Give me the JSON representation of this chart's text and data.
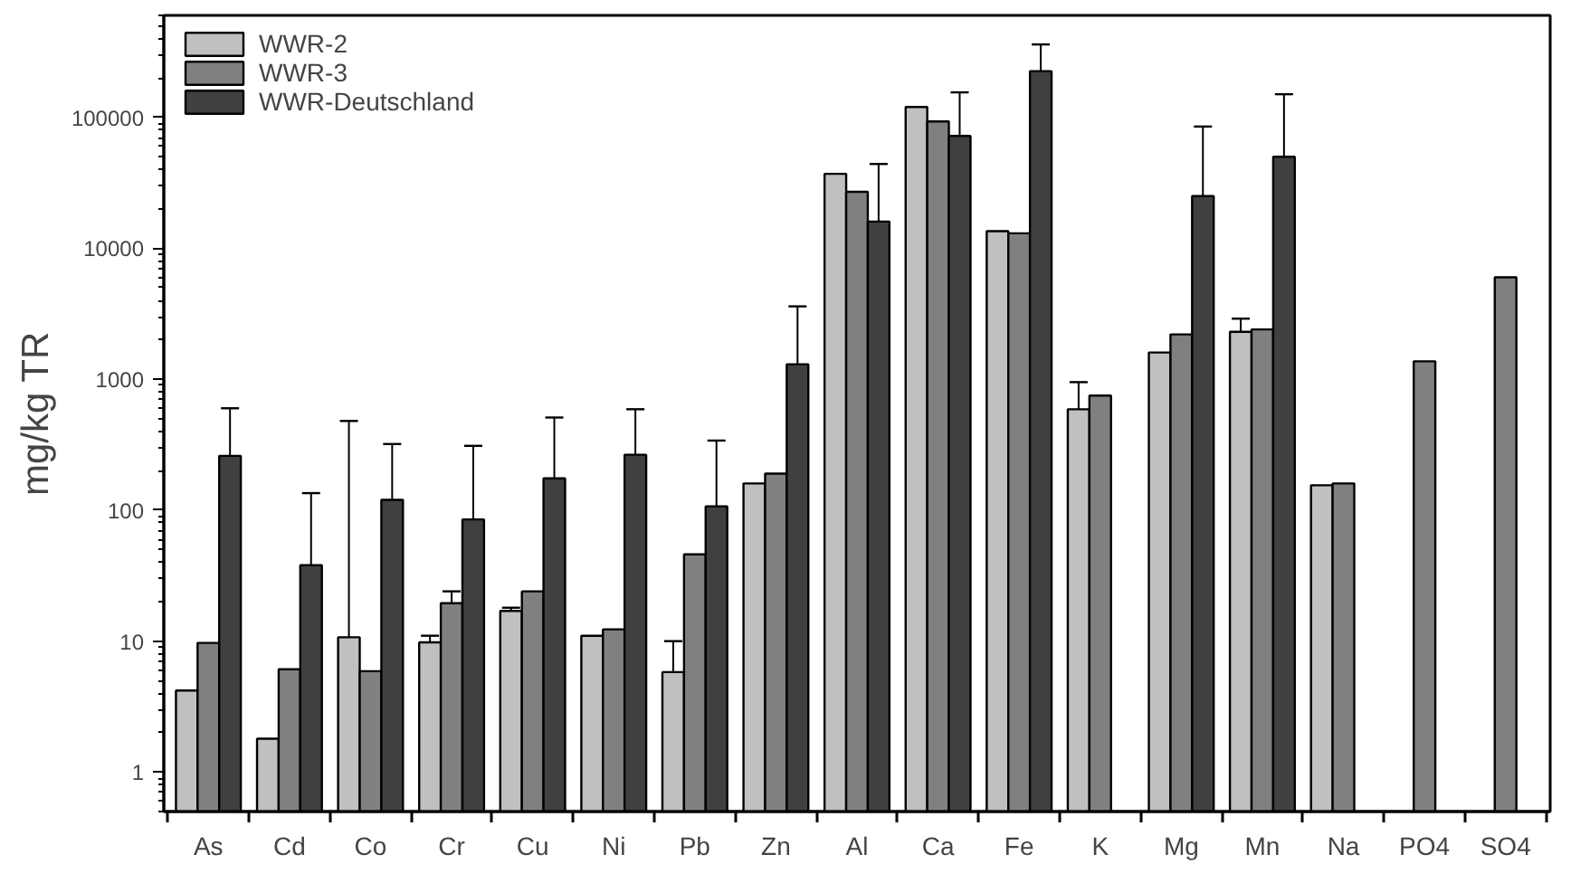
{
  "chart_data": {
    "type": "bar",
    "ylabel": "mg/kg TR",
    "log": "y",
    "ylim": [
      0.5,
      600000
    ],
    "yticks": [
      1,
      10,
      100,
      1000,
      10000,
      100000
    ],
    "grid": false,
    "legend": "top left",
    "categories": [
      "As",
      "Cd",
      "Co",
      "Cr",
      "Cu",
      "Ni",
      "Pb",
      "Zn",
      "Al",
      "Ca",
      "Fe",
      "K",
      "Mg",
      "Mn",
      "Na",
      "PO4",
      "SO4"
    ],
    "series": [
      {
        "name": "WWR-2",
        "color": "#c0c0c0",
        "values": [
          4.2,
          1.8,
          10.7,
          9.8,
          17,
          11,
          5.8,
          160,
          37000,
          120000,
          13500,
          590,
          1600,
          2300,
          155,
          null,
          null
        ],
        "errors": [
          null,
          null,
          [
            10.7,
            480
          ],
          [
            9.8,
            11
          ],
          [
            17,
            18
          ],
          null,
          [
            5.8,
            10
          ],
          null,
          null,
          null,
          null,
          [
            590,
            950
          ],
          null,
          [
            2300,
            2900
          ],
          null,
          null,
          null
        ]
      },
      {
        "name": "WWR-3",
        "color": "#808080",
        "values": [
          9.7,
          6.1,
          5.9,
          19.5,
          24,
          12.3,
          46,
          190,
          27000,
          93000,
          13000,
          750,
          2200,
          2400,
          160,
          1370,
          6000
        ],
        "errors": [
          null,
          null,
          null,
          [
            19.5,
            24
          ],
          null,
          null,
          null,
          null,
          null,
          null,
          null,
          null,
          null,
          null,
          null,
          null,
          null
        ]
      },
      {
        "name": "WWR-Deutschland",
        "color": "#404040",
        "values": [
          260,
          38,
          120,
          85,
          175,
          265,
          107,
          1300,
          16000,
          72000,
          225000,
          null,
          25000,
          50000,
          null,
          null,
          null
        ],
        "errors": [
          [
            260,
            600
          ],
          [
            38,
            135
          ],
          [
            120,
            320
          ],
          [
            85,
            310
          ],
          [
            175,
            510
          ],
          [
            265,
            590
          ],
          [
            107,
            340
          ],
          [
            1300,
            3600
          ],
          [
            16000,
            44000
          ],
          [
            72000,
            155000
          ],
          [
            225000,
            360000
          ],
          null,
          [
            25000,
            85000
          ],
          [
            50000,
            150000
          ],
          null,
          null,
          null
        ]
      }
    ]
  }
}
